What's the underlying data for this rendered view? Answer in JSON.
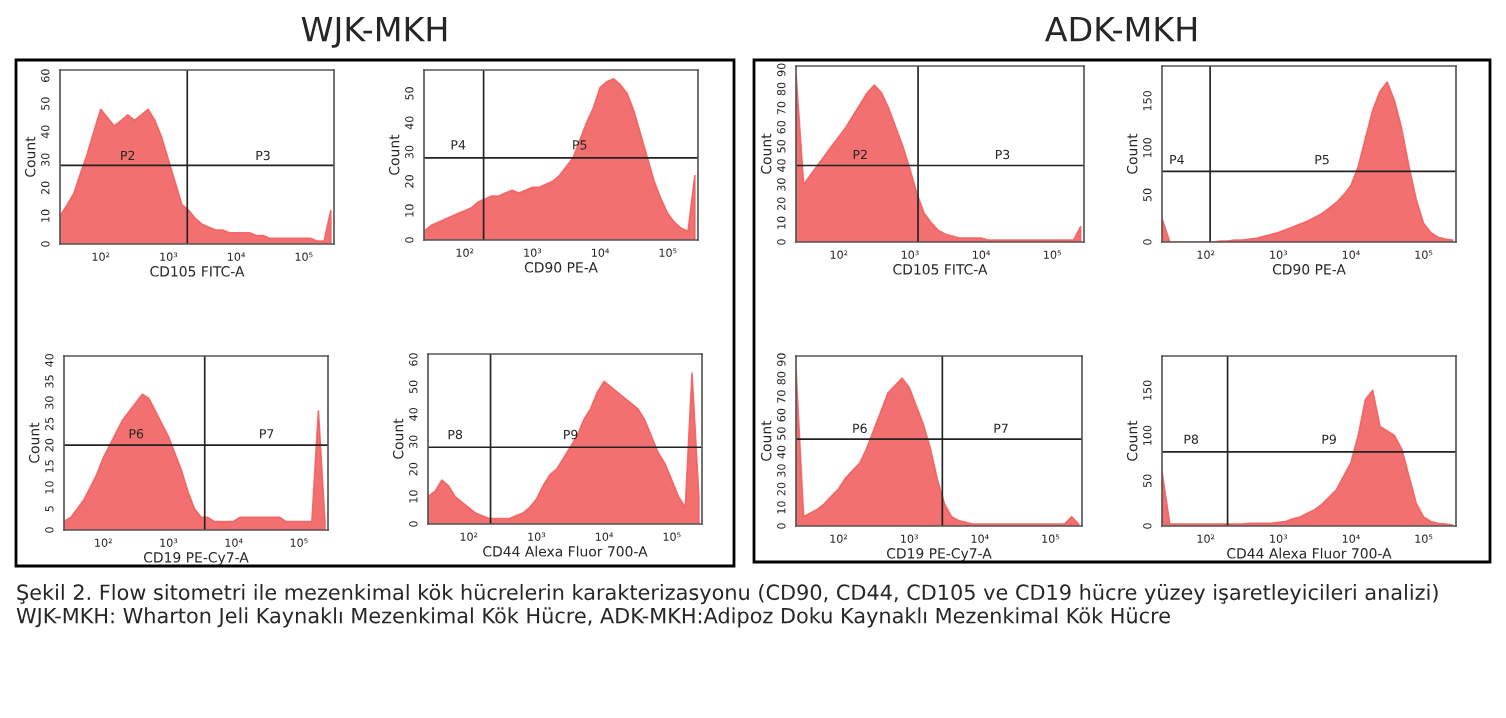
{
  "chart_data": [
    {
      "type": "area",
      "title": "WJK-MKH",
      "xlabel": "CD105 FITC-A",
      "ylabel": "Count",
      "log": "x",
      "xlim": [
        25,
        280000
      ],
      "ylim": [
        0,
        62
      ],
      "yticks": [
        0,
        10,
        20,
        30,
        40,
        50,
        60
      ],
      "xticks": [
        {
          "value": 100,
          "label": "10²"
        },
        {
          "value": 1000,
          "label": "10³"
        },
        {
          "value": 10000,
          "label": "10⁴"
        },
        {
          "value": 100000,
          "label": "10⁵"
        }
      ],
      "x": [
        25,
        32,
        40,
        50,
        63,
        79,
        100,
        126,
        158,
        200,
        251,
        316,
        398,
        501,
        631,
        794,
        1000,
        1259,
        1585,
        1995,
        2512,
        3162,
        3981,
        5012,
        6310,
        7943,
        10000,
        12589,
        15849,
        19953,
        25119,
        31623,
        39811,
        50119,
        63096,
        79433,
        100000,
        125893,
        158489,
        199526,
        251189
      ],
      "series": [
        {
          "color": "#f26060",
          "values": [
            10,
            14,
            18,
            25,
            32,
            40,
            48,
            45,
            42,
            44,
            46,
            44,
            46,
            48,
            44,
            38,
            30,
            22,
            14,
            12,
            9,
            7,
            6,
            5,
            5,
            4,
            4,
            4,
            4,
            3,
            3,
            2,
            2,
            2,
            2,
            2,
            2,
            2,
            1,
            1,
            12
          ]
        }
      ],
      "ref_lines": [
        {
          "axis": "x",
          "value": 1900
        },
        {
          "axis": "y",
          "value": 28
        }
      ],
      "annotations": [
        {
          "text": "P2",
          "x": 250,
          "y": 29
        },
        {
          "text": "P3",
          "x": 25000,
          "y": 29
        },
        "Şekil 2. Flow sitometri ile mezenkimal kök hücrelerin karakterizasyonu (CD90, CD44, CD105 ve CD19 hücre yüzey işaretleyicileri analizi) WJK-MKH: Wharton Jeli Kaynaklı Mezenkimal Kök Hücre, ADK-MKH:Adipoz Doku Kaynaklı Mezenkimal Kök Hücre"
      ],
      "grid": false
    },
    {
      "type": "area",
      "xlabel": "CD90 PE-A",
      "ylabel": "Count",
      "log": "x",
      "xlim": [
        25,
        280000
      ],
      "ylim": [
        0,
        58
      ],
      "yticks": [
        0,
        10,
        20,
        30,
        40,
        50
      ],
      "xticks": [
        {
          "value": 100,
          "label": "10²"
        },
        {
          "value": 1000,
          "label": "10³"
        },
        {
          "value": 10000,
          "label": "10⁴"
        },
        {
          "value": 100000,
          "label": "10⁵"
        }
      ],
      "x": [
        25,
        32,
        40,
        50,
        63,
        79,
        100,
        126,
        158,
        200,
        251,
        316,
        398,
        501,
        631,
        794,
        1000,
        1259,
        1585,
        1995,
        2512,
        3162,
        3981,
        5012,
        6310,
        7943,
        10000,
        12589,
        15849,
        19953,
        25119,
        31623,
        39811,
        50119,
        63096,
        79433,
        100000,
        125893,
        158489,
        199526,
        251189
      ],
      "series": [
        {
          "color": "#f26060",
          "values": [
            3,
            5,
            6,
            7,
            8,
            9,
            10,
            11,
            13,
            14,
            15,
            15,
            16,
            17,
            16,
            17,
            18,
            18,
            19,
            20,
            22,
            25,
            28,
            34,
            40,
            45,
            52,
            54,
            55,
            53,
            50,
            44,
            36,
            28,
            20,
            14,
            9,
            6,
            4,
            3,
            22
          ]
        }
      ],
      "ref_lines": [
        {
          "axis": "x",
          "value": 190
        },
        {
          "axis": "y",
          "value": 28
        }
      ],
      "annotations": [
        {
          "text": "P4",
          "x": 80,
          "y": 30
        },
        {
          "text": "P5",
          "x": 5000,
          "y": 30
        }
      ],
      "grid": false
    },
    {
      "type": "area",
      "xlabel": "CD19 PE-Cy7-A",
      "ylabel": "Count",
      "log": "x",
      "xlim": [
        25,
        280000
      ],
      "ylim": [
        0,
        41
      ],
      "yticks": [
        0,
        5,
        10,
        15,
        20,
        25,
        30,
        35,
        40
      ],
      "xticks": [
        {
          "value": 100,
          "label": "10²"
        },
        {
          "value": 1000,
          "label": "10³"
        },
        {
          "value": 10000,
          "label": "10⁴"
        },
        {
          "value": 100000,
          "label": "10⁵"
        }
      ],
      "x": [
        25,
        32,
        40,
        50,
        63,
        79,
        100,
        126,
        158,
        200,
        251,
        316,
        398,
        501,
        631,
        794,
        1000,
        1259,
        1585,
        1995,
        2512,
        3162,
        3981,
        5012,
        6310,
        7943,
        10000,
        12589,
        15849,
        19953,
        25119,
        31623,
        39811,
        50119,
        63096,
        79433,
        100000,
        125893,
        158489,
        199526,
        251189
      ],
      "series": [
        {
          "color": "#f26060",
          "values": [
            2,
            3,
            5,
            7,
            10,
            13,
            17,
            20,
            23,
            26,
            28,
            30,
            32,
            31,
            28,
            25,
            22,
            18,
            14,
            9,
            5,
            3,
            3,
            2,
            2,
            2,
            2,
            3,
            3,
            3,
            3,
            3,
            3,
            3,
            2,
            2,
            2,
            2,
            2,
            28,
            2
          ]
        }
      ],
      "ref_lines": [
        {
          "axis": "x",
          "value": 3600
        },
        {
          "axis": "y",
          "value": 20
        }
      ],
      "annotations": [
        {
          "text": "P6",
          "x": 320,
          "y": 21
        },
        {
          "text": "P7",
          "x": 32000,
          "y": 21
        }
      ],
      "grid": false
    },
    {
      "type": "area",
      "xlabel": "CD44 Alexa Fluor 700-A",
      "ylabel": "Count",
      "log": "x",
      "xlim": [
        25,
        280000
      ],
      "ylim": [
        0,
        62
      ],
      "yticks": [
        0,
        10,
        20,
        30,
        40,
        50,
        60
      ],
      "xticks": [
        {
          "value": 100,
          "label": "10²"
        },
        {
          "value": 1000,
          "label": "10³"
        },
        {
          "value": 10000,
          "label": "10⁴"
        },
        {
          "value": 100000,
          "label": "10⁵"
        }
      ],
      "x": [
        25,
        32,
        40,
        50,
        63,
        79,
        100,
        126,
        158,
        200,
        251,
        316,
        398,
        501,
        631,
        794,
        1000,
        1259,
        1585,
        1995,
        2512,
        3162,
        3981,
        5012,
        6310,
        7943,
        10000,
        12589,
        15849,
        19953,
        25119,
        31623,
        39811,
        50119,
        63096,
        79433,
        100000,
        125893,
        158489,
        199526,
        251189
      ],
      "series": [
        {
          "color": "#f26060",
          "values": [
            10,
            12,
            16,
            14,
            10,
            8,
            6,
            4,
            3,
            2,
            2,
            2,
            2,
            3,
            4,
            6,
            9,
            14,
            18,
            20,
            24,
            28,
            32,
            38,
            42,
            48,
            52,
            50,
            48,
            46,
            44,
            42,
            38,
            32,
            26,
            22,
            16,
            10,
            6,
            55,
            10
          ]
        }
      ],
      "ref_lines": [
        {
          "axis": "x",
          "value": 210
        },
        {
          "axis": "y",
          "value": 28
        }
      ],
      "annotations": [
        {
          "text": "P8",
          "x": 63,
          "y": 30
        },
        {
          "text": "P9",
          "x": 3200,
          "y": 30
        }
      ],
      "grid": false
    },
    {
      "type": "area",
      "title": "ADK-MKH",
      "xlabel": "CD105 FITC-A",
      "ylabel": "Count",
      "log": "x",
      "xlim": [
        25,
        280000
      ],
      "ylim": [
        0,
        92
      ],
      "yticks": [
        0,
        10,
        20,
        30,
        40,
        50,
        60,
        70,
        80,
        90
      ],
      "xticks": [
        {
          "value": 100,
          "label": "10²"
        },
        {
          "value": 1000,
          "label": "10³"
        },
        {
          "value": 10000,
          "label": "10⁴"
        },
        {
          "value": 100000,
          "label": "10⁵"
        }
      ],
      "x": [
        25,
        32,
        40,
        50,
        63,
        79,
        100,
        126,
        158,
        200,
        251,
        316,
        398,
        501,
        631,
        794,
        1000,
        1259,
        1585,
        1995,
        2512,
        3162,
        3981,
        5012,
        6310,
        7943,
        10000,
        12589,
        15849,
        19953,
        25119,
        31623,
        39811,
        50119,
        63096,
        79433,
        100000,
        125893,
        158489,
        199526,
        251189
      ],
      "series": [
        {
          "color": "#f26060",
          "values": [
            88,
            30,
            35,
            40,
            45,
            50,
            55,
            60,
            66,
            72,
            78,
            82,
            78,
            70,
            60,
            50,
            38,
            25,
            15,
            10,
            6,
            4,
            3,
            2,
            2,
            2,
            2,
            1,
            1,
            1,
            1,
            1,
            1,
            1,
            1,
            1,
            1,
            1,
            1,
            1,
            8
          ]
        }
      ],
      "ref_lines": [
        {
          "axis": "x",
          "value": 1300
        },
        {
          "axis": "y",
          "value": 40
        }
      ],
      "annotations": [
        {
          "text": "P2",
          "x": 200,
          "y": 42
        },
        {
          "text": "P3",
          "x": 20000,
          "y": 42
        }
      ],
      "grid": false
    },
    {
      "type": "area",
      "xlabel": "CD90 PE-A",
      "ylabel": "Count",
      "log": "x",
      "xlim": [
        25,
        280000
      ],
      "ylim": [
        0,
        187
      ],
      "yticks": [
        0,
        50,
        100,
        150
      ],
      "xticks": [
        {
          "value": 100,
          "label": "10²"
        },
        {
          "value": 1000,
          "label": "10³"
        },
        {
          "value": 10000,
          "label": "10⁴"
        },
        {
          "value": 100000,
          "label": "10⁵"
        }
      ],
      "x": [
        25,
        32,
        40,
        50,
        63,
        79,
        100,
        126,
        158,
        200,
        251,
        316,
        398,
        501,
        631,
        794,
        1000,
        1259,
        1585,
        1995,
        2512,
        3162,
        3981,
        5012,
        6310,
        7943,
        10000,
        12589,
        15849,
        19953,
        25119,
        31623,
        39811,
        50119,
        63096,
        79433,
        100000,
        125893,
        158489,
        199526,
        251189
      ],
      "series": [
        {
          "color": "#f26060",
          "values": [
            25,
            0,
            0,
            0,
            0,
            0,
            0,
            0,
            1,
            1,
            2,
            2,
            3,
            4,
            6,
            8,
            10,
            13,
            16,
            19,
            22,
            26,
            30,
            36,
            42,
            50,
            60,
            80,
            110,
            140,
            160,
            170,
            150,
            120,
            80,
            45,
            20,
            10,
            5,
            3,
            2
          ]
        }
      ],
      "ref_lines": [
        {
          "axis": "x",
          "value": 115
        },
        {
          "axis": "y",
          "value": 75
        }
      ],
      "annotations": [
        {
          "text": "P4",
          "x": 40,
          "y": 80
        },
        {
          "text": "P5",
          "x": 4000,
          "y": 80
        }
      ],
      "grid": false
    },
    {
      "type": "area",
      "xlabel": "CD19 PE-Cy7-A",
      "ylabel": "Count",
      "log": "x",
      "xlim": [
        25,
        280000
      ],
      "ylim": [
        0,
        92
      ],
      "yticks": [
        0,
        10,
        20,
        30,
        40,
        50,
        60,
        70,
        80,
        90
      ],
      "xticks": [
        {
          "value": 100,
          "label": "10²"
        },
        {
          "value": 1000,
          "label": "10³"
        },
        {
          "value": 10000,
          "label": "10⁴"
        },
        {
          "value": 100000,
          "label": "10⁵"
        }
      ],
      "x": [
        25,
        32,
        40,
        50,
        63,
        79,
        100,
        126,
        158,
        200,
        251,
        316,
        398,
        501,
        631,
        794,
        1000,
        1259,
        1585,
        1995,
        2512,
        3162,
        3981,
        5012,
        6310,
        7943,
        10000,
        12589,
        15849,
        19953,
        25119,
        31623,
        39811,
        50119,
        63096,
        79433,
        100000,
        125893,
        158489,
        199526,
        251189
      ],
      "series": [
        {
          "color": "#f26060",
          "values": [
            85,
            5,
            7,
            9,
            12,
            16,
            20,
            26,
            30,
            34,
            42,
            52,
            62,
            72,
            76,
            80,
            75,
            65,
            55,
            42,
            25,
            12,
            5,
            3,
            2,
            1,
            1,
            1,
            1,
            1,
            1,
            1,
            1,
            1,
            1,
            1,
            1,
            1,
            1,
            5,
            1
          ]
        }
      ],
      "ref_lines": [
        {
          "axis": "x",
          "value": 2950
        },
        {
          "axis": "y",
          "value": 47
        }
      ],
      "annotations": [
        {
          "text": "P6",
          "x": 200,
          "y": 49
        },
        {
          "text": "P7",
          "x": 20000,
          "y": 49
        }
      ],
      "grid": false
    },
    {
      "type": "area",
      "xlabel": "CD44 Alexa Fluor 700-A",
      "ylabel": "Count",
      "log": "x",
      "xlim": [
        25,
        280000
      ],
      "ylim": [
        0,
        188
      ],
      "yticks": [
        0,
        50,
        100,
        150
      ],
      "xticks": [
        {
          "value": 100,
          "label": "10²"
        },
        {
          "value": 1000,
          "label": "10³"
        },
        {
          "value": 10000,
          "label": "10⁴"
        },
        {
          "value": 100000,
          "label": "10⁵"
        }
      ],
      "x": [
        25,
        32,
        40,
        50,
        63,
        79,
        100,
        126,
        158,
        200,
        251,
        316,
        398,
        501,
        631,
        794,
        1000,
        1259,
        1585,
        1995,
        2512,
        3162,
        3981,
        5012,
        6310,
        7943,
        10000,
        12589,
        15849,
        19953,
        25119,
        31623,
        39811,
        50119,
        63096,
        79433,
        100000,
        125893,
        158489,
        199526,
        251189
      ],
      "series": [
        {
          "color": "#f26060",
          "values": [
            60,
            2,
            2,
            2,
            2,
            2,
            2,
            2,
            2,
            2,
            2,
            2,
            3,
            3,
            3,
            3,
            4,
            5,
            8,
            10,
            14,
            18,
            24,
            32,
            40,
            55,
            70,
            100,
            140,
            150,
            110,
            105,
            100,
            85,
            55,
            25,
            10,
            5,
            3,
            2,
            1
          ]
        }
      ],
      "ref_lines": [
        {
          "axis": "x",
          "value": 200
        },
        {
          "axis": "y",
          "value": 82
        }
      ],
      "annotations": [
        {
          "text": "P8",
          "x": 63,
          "y": 88
        },
        {
          "text": "P9",
          "x": 5000,
          "y": 88
        }
      ],
      "grid": false
    }
  ]
}
